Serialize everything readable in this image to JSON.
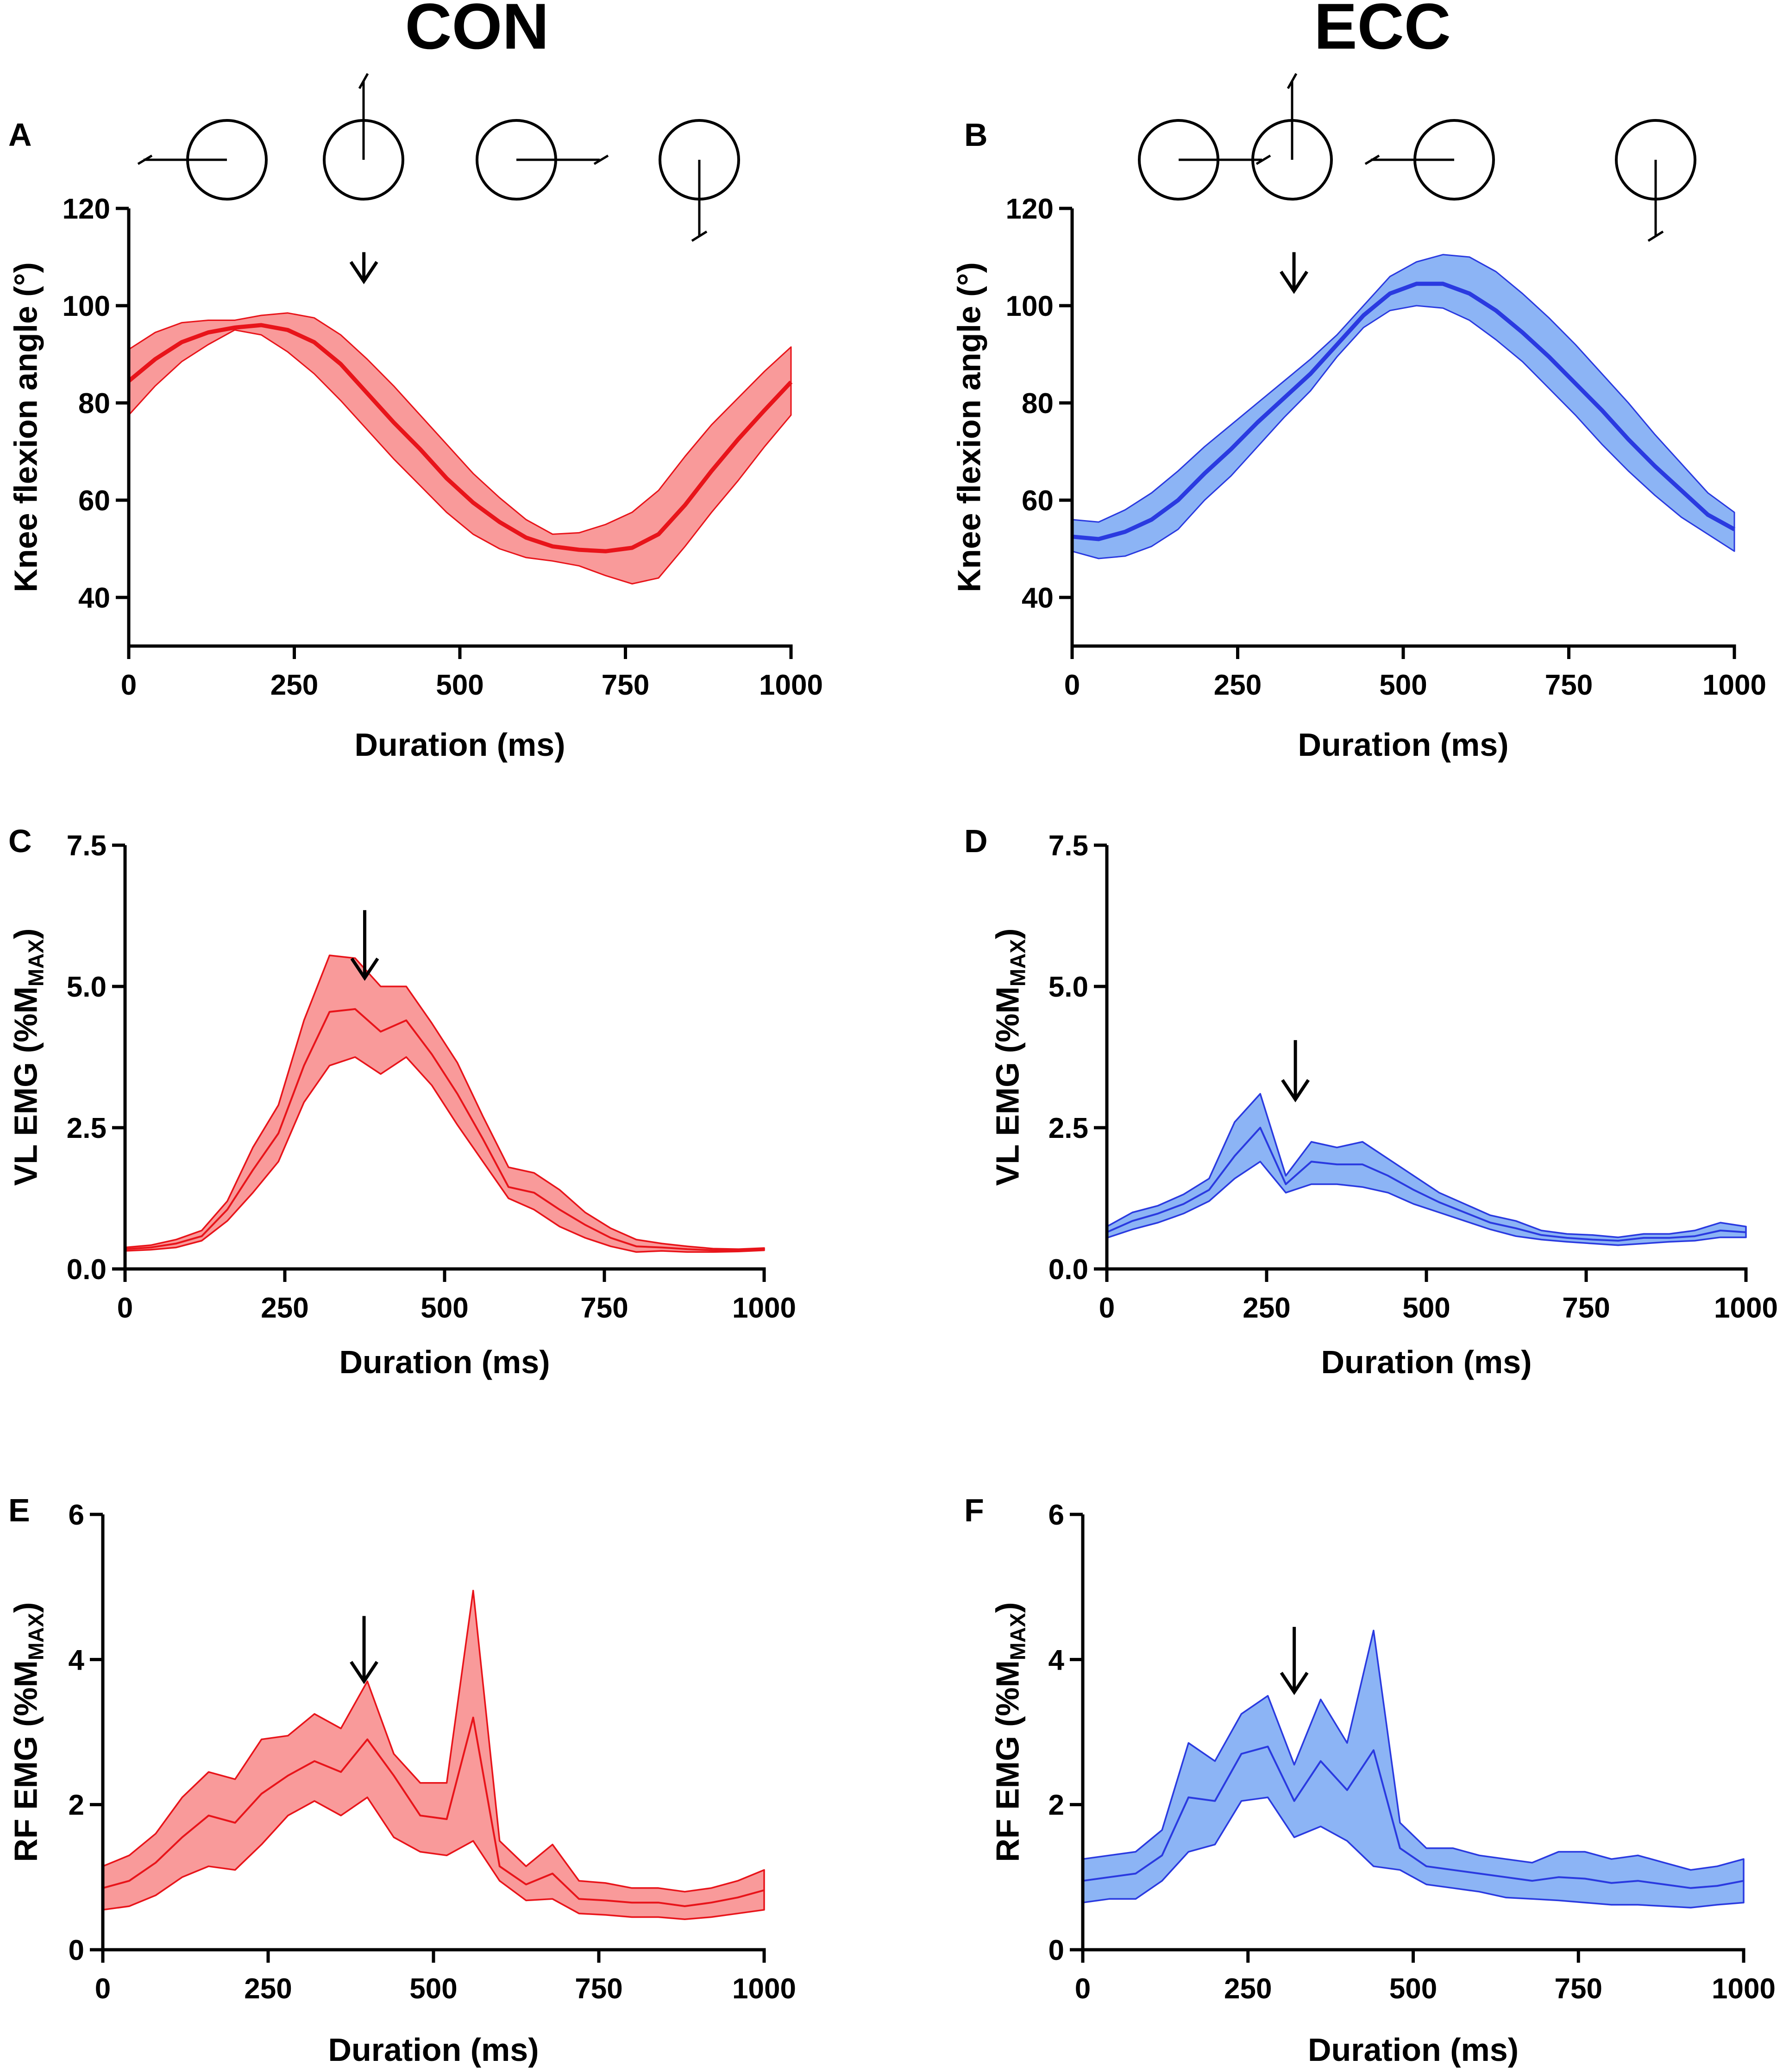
{
  "columns": [
    {
      "title": "CON",
      "color": "#e8141a"
    },
    {
      "title": "ECC",
      "color": "#2a3ae0"
    }
  ],
  "band_colors": {
    "CON": "#f99a9a",
    "ECC": "#8cb4f5"
  },
  "icons": [
    "crank-position-icon",
    "arrow-down-icon"
  ],
  "chart_data": [
    {
      "id": "A",
      "type": "line",
      "group": "CON",
      "xlabel": "Duration (ms)",
      "ylabel_parts": [
        "Knee flexion angle (°)"
      ],
      "xlim": [
        0,
        1000
      ],
      "xticks": [
        0,
        250,
        500,
        750,
        1000
      ],
      "ylim": [
        30,
        120
      ],
      "yticks": [
        40,
        60,
        80,
        100,
        120
      ],
      "ytick_labels": [
        "40",
        "60",
        "80",
        "100",
        "120"
      ],
      "x": [
        0,
        40,
        80,
        120,
        160,
        200,
        240,
        280,
        320,
        360,
        400,
        440,
        480,
        520,
        560,
        600,
        640,
        680,
        720,
        760,
        800,
        840,
        880,
        920,
        960,
        1000
      ],
      "mean": [
        84.5,
        89,
        92.5,
        94.5,
        95.5,
        96,
        95,
        92.5,
        88,
        82,
        76,
        70.5,
        64.5,
        59.5,
        55.5,
        52.3,
        50.5,
        49.8,
        49.5,
        50.2,
        53,
        59,
        66,
        72.5,
        78.5,
        84.3
      ],
      "upper": [
        91,
        94.5,
        96.5,
        97,
        97,
        98,
        98.5,
        97.5,
        94,
        89,
        83.5,
        77.5,
        71.5,
        65.5,
        60.5,
        56,
        53,
        53.3,
        55,
        57.5,
        62,
        69,
        75.5,
        81,
        86.5,
        91.5
      ],
      "lower": [
        77.5,
        83.5,
        88.5,
        92,
        95,
        94,
        90.5,
        86,
        80.5,
        74.5,
        68.5,
        63,
        57.5,
        53,
        50,
        48.2,
        47.5,
        46.5,
        44.5,
        42.8,
        44,
        50.5,
        57.5,
        64,
        71,
        77.5
      ],
      "arrow_x": 355,
      "arrow_y_range": [
        111,
        105
      ],
      "crank_positions": [
        "left",
        "top",
        "right",
        "bottom"
      ]
    },
    {
      "id": "B",
      "type": "line",
      "group": "ECC",
      "xlabel": "Duration (ms)",
      "ylabel_parts": [
        "Knee flexion angle (°)"
      ],
      "xlim": [
        0,
        1000
      ],
      "xticks": [
        0,
        250,
        500,
        750,
        1000
      ],
      "ylim": [
        30,
        120
      ],
      "yticks": [
        40,
        60,
        80,
        100,
        120
      ],
      "ytick_labels": [
        "40",
        "60",
        "80",
        "100",
        "120"
      ],
      "x": [
        0,
        40,
        80,
        120,
        160,
        200,
        240,
        280,
        320,
        360,
        400,
        440,
        480,
        520,
        560,
        600,
        640,
        680,
        720,
        760,
        800,
        840,
        880,
        920,
        960,
        1000
      ],
      "mean": [
        52.5,
        52,
        53.5,
        56,
        60,
        65.5,
        70.5,
        76,
        81,
        86,
        92,
        98,
        102.5,
        104.5,
        104.5,
        102.5,
        99,
        94.5,
        89.5,
        84,
        78.5,
        72.5,
        67,
        62,
        57,
        54
      ],
      "upper": [
        56,
        55.5,
        58,
        61.5,
        66,
        71,
        75.5,
        80,
        84.5,
        89,
        94,
        100,
        106,
        109,
        110.5,
        110,
        107,
        102.5,
        97.5,
        92,
        86,
        80,
        73.5,
        67.5,
        61.5,
        57.5
      ],
      "lower": [
        49.5,
        48,
        48.5,
        50.5,
        54,
        60,
        65,
        71,
        77,
        82.5,
        89.5,
        95.5,
        99,
        100,
        99.5,
        97,
        93,
        88.5,
        83,
        77.5,
        71.5,
        66,
        61,
        56.5,
        53,
        49.5
      ],
      "arrow_x": 335,
      "arrow_y_range": [
        111,
        103
      ],
      "crank_positions": [
        "right",
        "top",
        "left",
        "bottom"
      ]
    },
    {
      "id": "C",
      "type": "line",
      "group": "CON",
      "xlabel": "Duration (ms)",
      "ylabel_parts": [
        "VL EMG (%M",
        "MAX",
        ")"
      ],
      "xlim": [
        0,
        1000
      ],
      "xticks": [
        0,
        250,
        500,
        750,
        1000
      ],
      "ylim": [
        0,
        7.5
      ],
      "yticks": [
        0,
        2.5,
        5,
        7.5
      ],
      "ytick_labels": [
        "0.0",
        "2.5",
        "5.0",
        "7.5"
      ],
      "x": [
        0,
        40,
        80,
        120,
        160,
        200,
        240,
        280,
        320,
        360,
        400,
        440,
        480,
        520,
        560,
        600,
        640,
        680,
        720,
        760,
        800,
        840,
        880,
        920,
        960,
        1000
      ],
      "mean": [
        0.35,
        0.38,
        0.45,
        0.58,
        1.05,
        1.75,
        2.4,
        3.6,
        4.55,
        4.6,
        4.2,
        4.4,
        3.8,
        3.1,
        2.3,
        1.45,
        1.35,
        1.05,
        0.78,
        0.55,
        0.4,
        0.38,
        0.35,
        0.33,
        0.33,
        0.35
      ],
      "upper": [
        0.38,
        0.42,
        0.52,
        0.68,
        1.2,
        2.15,
        2.9,
        4.4,
        5.55,
        5.5,
        5.0,
        5.0,
        4.35,
        3.65,
        2.7,
        1.8,
        1.7,
        1.4,
        1.0,
        0.72,
        0.52,
        0.45,
        0.4,
        0.36,
        0.35,
        0.37
      ],
      "lower": [
        0.32,
        0.34,
        0.38,
        0.5,
        0.85,
        1.35,
        1.9,
        2.95,
        3.6,
        3.75,
        3.45,
        3.75,
        3.25,
        2.55,
        1.9,
        1.25,
        1.05,
        0.75,
        0.55,
        0.4,
        0.3,
        0.32,
        0.3,
        0.3,
        0.31,
        0.33
      ],
      "arrow_x": 375,
      "arrow_y_range": [
        6.35,
        5.15
      ]
    },
    {
      "id": "D",
      "type": "line",
      "group": "ECC",
      "xlabel": "Duration (ms)",
      "ylabel_parts": [
        "VL EMG (%M",
        "MAX",
        ")"
      ],
      "xlim": [
        0,
        1000
      ],
      "xticks": [
        0,
        250,
        500,
        750,
        1000
      ],
      "ylim": [
        0,
        7.5
      ],
      "yticks": [
        0,
        2.5,
        5,
        7.5
      ],
      "ytick_labels": [
        "0.0",
        "2.5",
        "5.0",
        "7.5"
      ],
      "x": [
        0,
        40,
        80,
        120,
        160,
        200,
        240,
        280,
        320,
        360,
        400,
        440,
        480,
        520,
        560,
        600,
        640,
        680,
        720,
        760,
        800,
        840,
        880,
        920,
        960,
        1000
      ],
      "mean": [
        0.65,
        0.85,
        0.98,
        1.15,
        1.4,
        2.0,
        2.5,
        1.5,
        1.9,
        1.85,
        1.85,
        1.65,
        1.4,
        1.18,
        1.0,
        0.82,
        0.72,
        0.6,
        0.55,
        0.52,
        0.5,
        0.55,
        0.55,
        0.58,
        0.68,
        0.65
      ],
      "upper": [
        0.75,
        1.0,
        1.12,
        1.32,
        1.6,
        2.6,
        3.1,
        1.65,
        2.25,
        2.15,
        2.25,
        1.95,
        1.65,
        1.35,
        1.15,
        0.95,
        0.85,
        0.68,
        0.62,
        0.6,
        0.56,
        0.62,
        0.62,
        0.68,
        0.82,
        0.75
      ],
      "lower": [
        0.55,
        0.7,
        0.82,
        0.98,
        1.2,
        1.6,
        1.9,
        1.35,
        1.5,
        1.5,
        1.45,
        1.35,
        1.15,
        1.0,
        0.85,
        0.7,
        0.58,
        0.52,
        0.48,
        0.45,
        0.42,
        0.45,
        0.48,
        0.5,
        0.56,
        0.56
      ],
      "arrow_x": 295,
      "arrow_y_range": [
        4.05,
        3.0
      ]
    },
    {
      "id": "E",
      "type": "line",
      "group": "CON",
      "xlabel": "Duration (ms)",
      "ylabel_parts": [
        "RF EMG (%M",
        "MAX",
        ")"
      ],
      "xlim": [
        0,
        1000
      ],
      "xticks": [
        0,
        250,
        500,
        750,
        1000
      ],
      "ylim": [
        0,
        6
      ],
      "yticks": [
        0,
        2,
        4,
        6
      ],
      "ytick_labels": [
        "0",
        "2",
        "4",
        "6"
      ],
      "x": [
        0,
        40,
        80,
        120,
        160,
        200,
        240,
        280,
        320,
        360,
        400,
        440,
        480,
        520,
        560,
        600,
        640,
        680,
        720,
        760,
        800,
        840,
        880,
        920,
        960,
        1000
      ],
      "mean": [
        0.85,
        0.95,
        1.2,
        1.55,
        1.85,
        1.75,
        2.15,
        2.4,
        2.6,
        2.45,
        2.9,
        2.4,
        1.85,
        1.8,
        3.2,
        1.15,
        0.9,
        1.05,
        0.7,
        0.68,
        0.65,
        0.65,
        0.6,
        0.65,
        0.72,
        0.82
      ],
      "upper": [
        1.15,
        1.3,
        1.6,
        2.1,
        2.45,
        2.35,
        2.9,
        2.95,
        3.25,
        3.05,
        3.7,
        2.7,
        2.3,
        2.3,
        4.95,
        1.5,
        1.15,
        1.45,
        0.95,
        0.92,
        0.85,
        0.85,
        0.8,
        0.85,
        0.95,
        1.1
      ],
      "lower": [
        0.55,
        0.6,
        0.75,
        1.0,
        1.15,
        1.1,
        1.45,
        1.85,
        2.05,
        1.85,
        2.1,
        1.55,
        1.35,
        1.3,
        1.5,
        0.95,
        0.68,
        0.7,
        0.5,
        0.48,
        0.45,
        0.45,
        0.42,
        0.45,
        0.5,
        0.55
      ],
      "arrow_x": 395,
      "arrow_y_range": [
        4.6,
        3.7
      ]
    },
    {
      "id": "F",
      "type": "line",
      "group": "ECC",
      "xlabel": "Duration (ms)",
      "ylabel_parts": [
        "RF EMG (%M",
        "MAX",
        ")"
      ],
      "xlim": [
        0,
        1000
      ],
      "xticks": [
        0,
        250,
        500,
        750,
        1000
      ],
      "ylim": [
        0,
        6
      ],
      "yticks": [
        0,
        2,
        4,
        6
      ],
      "ytick_labels": [
        "0",
        "2",
        "4",
        "6"
      ],
      "x": [
        0,
        40,
        80,
        120,
        160,
        200,
        240,
        280,
        320,
        360,
        400,
        440,
        480,
        520,
        560,
        600,
        640,
        680,
        720,
        760,
        800,
        840,
        880,
        920,
        960,
        1000
      ],
      "mean": [
        0.95,
        1.0,
        1.05,
        1.3,
        2.1,
        2.05,
        2.7,
        2.8,
        2.05,
        2.6,
        2.2,
        2.75,
        1.4,
        1.15,
        1.1,
        1.05,
        1.0,
        0.95,
        1.0,
        0.98,
        0.92,
        0.95,
        0.9,
        0.85,
        0.88,
        0.95
      ],
      "upper": [
        1.25,
        1.3,
        1.35,
        1.65,
        2.85,
        2.6,
        3.25,
        3.5,
        2.55,
        3.45,
        2.85,
        4.4,
        1.75,
        1.4,
        1.4,
        1.3,
        1.25,
        1.2,
        1.35,
        1.35,
        1.25,
        1.3,
        1.2,
        1.1,
        1.15,
        1.25
      ],
      "lower": [
        0.65,
        0.7,
        0.7,
        0.95,
        1.35,
        1.45,
        2.05,
        2.1,
        1.55,
        1.7,
        1.5,
        1.15,
        1.1,
        0.9,
        0.85,
        0.8,
        0.72,
        0.7,
        0.68,
        0.65,
        0.62,
        0.62,
        0.6,
        0.58,
        0.62,
        0.65
      ],
      "arrow_x": 320,
      "arrow_y_range": [
        4.45,
        3.55
      ]
    }
  ]
}
